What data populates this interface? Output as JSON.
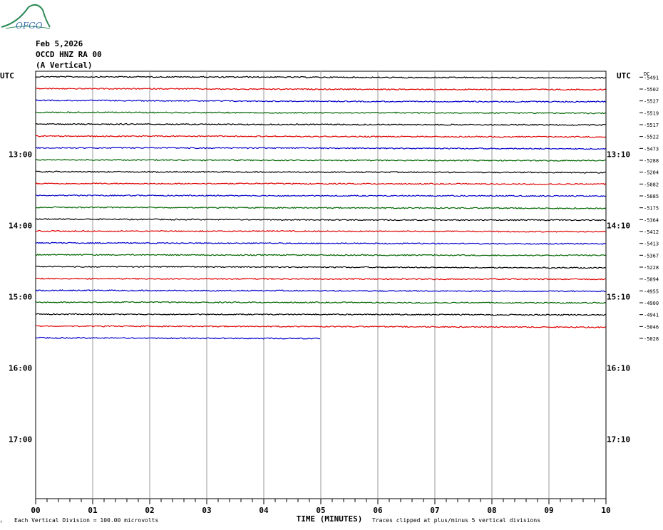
{
  "header": {
    "logo_text": "OFGO",
    "date": "Feb 5,2026",
    "station": "OCCD HNZ RA 00",
    "channel_desc": "(A Vertical)"
  },
  "axes": {
    "left_title": "UTC",
    "right_title": "UTC",
    "dc_label": "DC",
    "x_title": "TIME (MINUTES)",
    "x_ticks": [
      "00",
      "01",
      "02",
      "03",
      "04",
      "05",
      "06",
      "07",
      "08",
      "09",
      "10"
    ]
  },
  "hour_labels": [
    {
      "left": "13:00",
      "right": "13:10",
      "row": 6.5
    },
    {
      "left": "14:00",
      "right": "14:10",
      "row": 12.5
    },
    {
      "left": "15:00",
      "right": "15:10",
      "row": 18.5
    },
    {
      "left": "16:00",
      "right": "16:10",
      "row": 24.5
    },
    {
      "left": "17:00",
      "right": "17:10",
      "row": 30.5
    }
  ],
  "footer": {
    "division": "Each Vertical Division =  100.00 microvolts",
    "clip_note": "Traces clipped at plus/minus 5 vertical divisions"
  },
  "colors": {
    "cycle": [
      "#000000",
      "#e00000",
      "#0000cc",
      "#006600"
    ],
    "grid": "#999999",
    "logo": "#2e8b57"
  },
  "chart_data": {
    "type": "line",
    "title": "OCCD HNZ RA 00",
    "xlabel": "TIME (MINUTES)",
    "xlim": [
      0,
      10
    ],
    "rows_total": 36,
    "dc_offsets": [
      -5491,
      -5502,
      -5527,
      -5519,
      -5517,
      -5522,
      -5473,
      -5288,
      -5204,
      -5082,
      -5085,
      -5175,
      -5364,
      -5412,
      -5413,
      -5367,
      -5228,
      -5094,
      -4955,
      -4900,
      -4941,
      -5046,
      -5028
    ],
    "trace_end_minutes": [
      10,
      10,
      10,
      10,
      10,
      10,
      10,
      10,
      10,
      10,
      10,
      10,
      10,
      10,
      10,
      10,
      10,
      10,
      10,
      10,
      10,
      10,
      5
    ]
  }
}
